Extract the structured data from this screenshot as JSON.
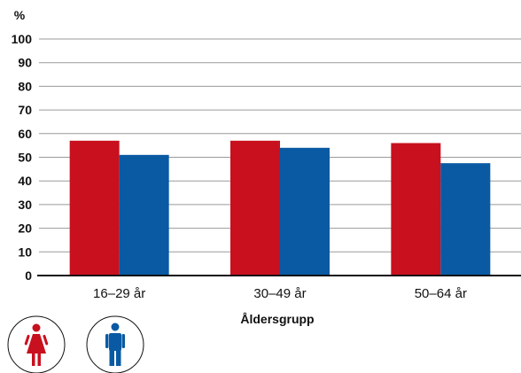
{
  "chart_data": {
    "type": "bar",
    "y_unit_label": "%",
    "xlabel": "Åldersgrupp",
    "ylim": [
      0,
      100
    ],
    "y_ticks": [
      0,
      10,
      20,
      30,
      40,
      50,
      60,
      70,
      80,
      90,
      100
    ],
    "categories": [
      "16–29 år",
      "30–49 år",
      "50–64 år"
    ],
    "series": [
      {
        "values": [
          57,
          57,
          56
        ],
        "color": "#c8101e"
      },
      {
        "values": [
          51,
          54,
          47.5
        ],
        "color": "#0a5aa3"
      }
    ],
    "grid": true,
    "legend": "icons-bottom-left",
    "legend_icons": [
      "female-figure-icon",
      "male-figure-icon"
    ]
  }
}
